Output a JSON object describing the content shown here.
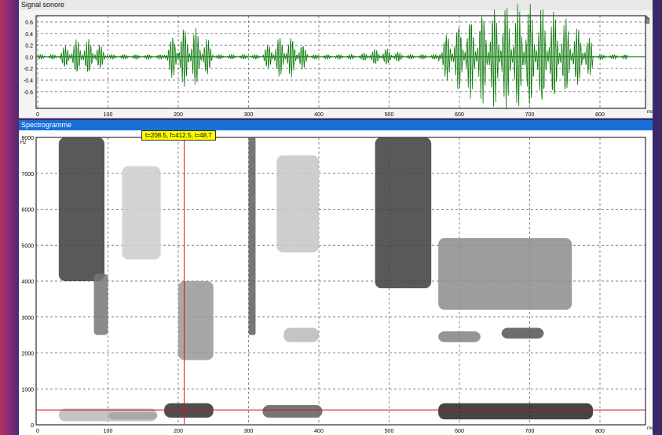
{
  "waveform": {
    "title": "Signal sonore",
    "y_ticks": [
      "0.6",
      "0.4",
      "0.2",
      "0.0",
      "-0.2",
      "-0.4",
      "-0.6"
    ],
    "x_ticks": [
      "0",
      "100",
      "200",
      "300",
      "400",
      "500",
      "600",
      "700",
      "800"
    ],
    "x_unit": "ms",
    "color": "#0a7a0a"
  },
  "spectrogram": {
    "title": "Spectrogramme",
    "y_ticks": [
      "8000",
      "7000",
      "6000",
      "5000",
      "4000",
      "3000",
      "2000",
      "1000",
      "0"
    ],
    "y_unit": "Hz",
    "x_ticks": [
      "0",
      "100",
      "200",
      "300",
      "400",
      "500",
      "600",
      "700",
      "800"
    ],
    "x_unit": "ms",
    "cursor_readout": "t=208.5, f=412.5, i=48.7",
    "cursor_color": "#d81010",
    "readout_bg": "#ffff00"
  },
  "icons": {
    "corner": "window-restore-icon"
  }
}
